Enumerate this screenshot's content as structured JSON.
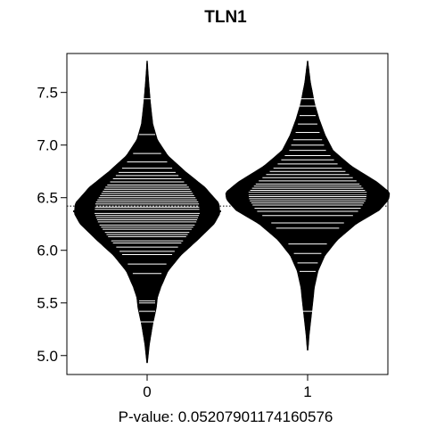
{
  "chart_data": {
    "type": "beanplot",
    "title": "TLN1",
    "xlabel": "P-value: 0.05207901174160576",
    "ylabel": "",
    "categories": [
      "0",
      "1"
    ],
    "xlim": [
      0.5,
      2.5
    ],
    "ylim": [
      4.82,
      7.87
    ],
    "y_ticks": [
      5.0,
      5.5,
      6.0,
      6.5,
      7.0,
      7.5
    ],
    "y_tick_labels": [
      "5.0",
      "5.5",
      "6.0",
      "6.5",
      "7.0",
      "7.5"
    ],
    "overall_mean": 6.42,
    "grid": false,
    "legend": "none",
    "colors": {
      "bean_fill": "#000000",
      "bean_lines": "#ffffff",
      "axis": "#000000",
      "reference_line": "#000000"
    },
    "series": [
      {
        "name": "0",
        "mean": 6.37,
        "y_range": [
          4.93,
          7.8
        ],
        "density_profile": [
          [
            4.93,
            0.004
          ],
          [
            5.1,
            0.02
          ],
          [
            5.3,
            0.05
          ],
          [
            5.45,
            0.08
          ],
          [
            5.55,
            0.09
          ],
          [
            5.65,
            0.12
          ],
          [
            5.8,
            0.18
          ],
          [
            5.95,
            0.29
          ],
          [
            6.1,
            0.44
          ],
          [
            6.25,
            0.58
          ],
          [
            6.35,
            0.63
          ],
          [
            6.45,
            0.62
          ],
          [
            6.6,
            0.5
          ],
          [
            6.75,
            0.33
          ],
          [
            6.9,
            0.18
          ],
          [
            7.05,
            0.09
          ],
          [
            7.2,
            0.05
          ],
          [
            7.4,
            0.03
          ],
          [
            7.6,
            0.015
          ],
          [
            7.8,
            0.003
          ]
        ],
        "observations": [
          5.32,
          5.42,
          5.5,
          5.52,
          5.78,
          5.87,
          5.96,
          5.99,
          6.03,
          6.07,
          6.09,
          6.13,
          6.15,
          6.17,
          6.2,
          6.22,
          6.24,
          6.27,
          6.29,
          6.31,
          6.33,
          6.35,
          6.37,
          6.39,
          6.41,
          6.42,
          6.44,
          6.46,
          6.48,
          6.5,
          6.52,
          6.54,
          6.56,
          6.58,
          6.6,
          6.62,
          6.65,
          6.68,
          6.71,
          6.74,
          6.78,
          6.84,
          6.92,
          7.1,
          7.44
        ]
      },
      {
        "name": "1",
        "mean": 6.54,
        "y_range": [
          5.05,
          7.8
        ],
        "density_profile": [
          [
            5.05,
            0.004
          ],
          [
            5.2,
            0.015
          ],
          [
            5.35,
            0.03
          ],
          [
            5.5,
            0.045
          ],
          [
            5.65,
            0.06
          ],
          [
            5.8,
            0.09
          ],
          [
            5.95,
            0.15
          ],
          [
            6.1,
            0.26
          ],
          [
            6.25,
            0.42
          ],
          [
            6.38,
            0.62
          ],
          [
            6.48,
            0.7
          ],
          [
            6.55,
            0.71
          ],
          [
            6.65,
            0.6
          ],
          [
            6.8,
            0.38
          ],
          [
            6.95,
            0.22
          ],
          [
            7.1,
            0.15
          ],
          [
            7.25,
            0.1
          ],
          [
            7.4,
            0.06
          ],
          [
            7.6,
            0.025
          ],
          [
            7.8,
            0.003
          ]
        ],
        "observations": [
          5.42,
          5.8,
          5.88,
          5.97,
          6.06,
          6.21,
          6.26,
          6.33,
          6.37,
          6.4,
          6.43,
          6.45,
          6.47,
          6.49,
          6.51,
          6.53,
          6.55,
          6.57,
          6.59,
          6.61,
          6.63,
          6.66,
          6.69,
          6.72,
          6.75,
          6.78,
          6.82,
          6.86,
          6.9,
          6.95,
          7.0,
          7.05,
          7.12,
          7.2,
          7.28,
          7.37,
          7.44
        ]
      }
    ]
  }
}
